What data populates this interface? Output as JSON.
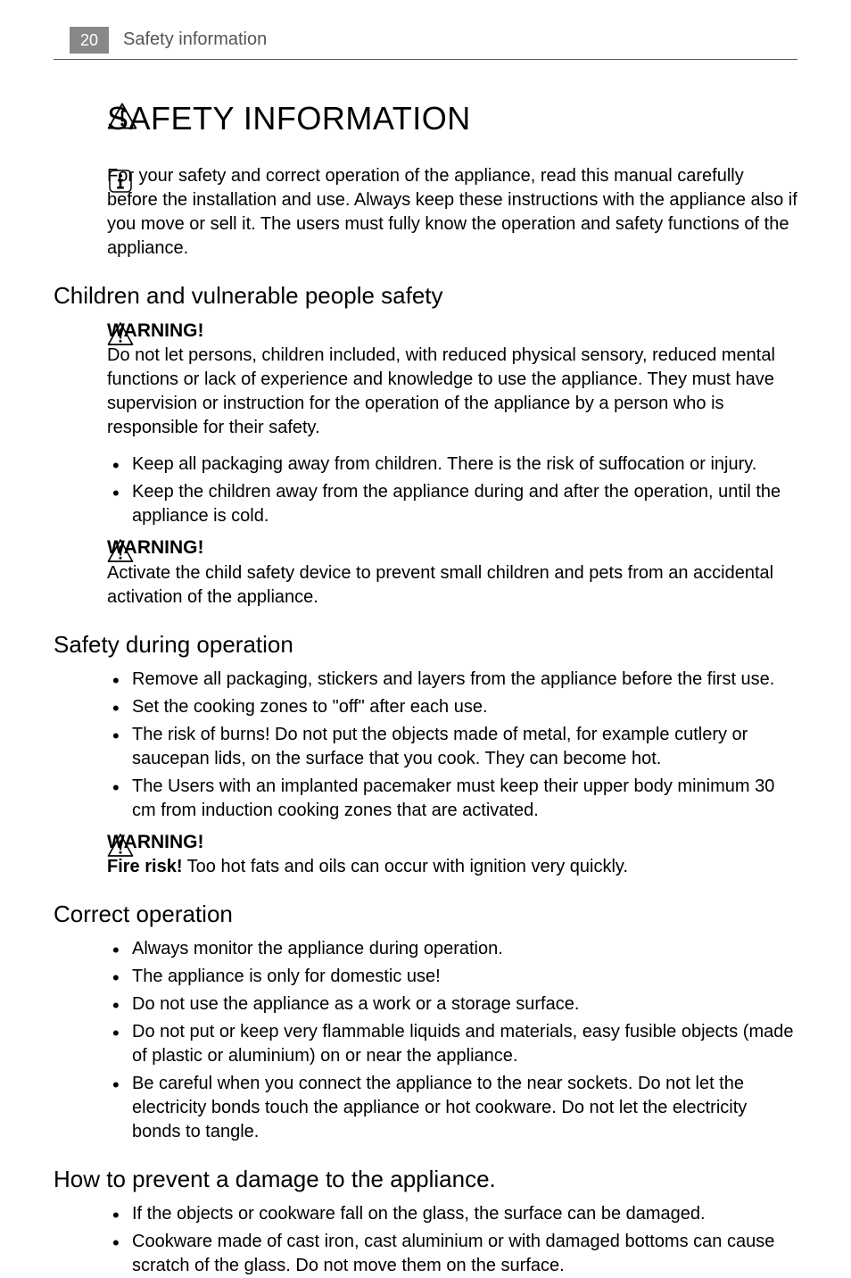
{
  "header": {
    "page_number": "20",
    "running_title": "Safety information"
  },
  "title": "SAFETY INFORMATION",
  "intro": "For your safety and correct operation of the appliance, read this manual carefully before the installation and use. Always keep these instructions with the appliance also if you move or sell it. The users must fully know the operation and safety functions of the appliance.",
  "sections": {
    "children": {
      "heading": "Children and vulnerable people safety",
      "warning1_label": "WARNING!",
      "warning1_body": "Do not let persons, children included, with reduced physical sensory, reduced mental functions or lack of experience and knowledge to use the appliance. They must have supervision or instruction for the operation of the appliance by a person who is responsible for their safety.",
      "bullets": [
        "Keep all packaging away from children. There is the risk of suffocation or injury.",
        "Keep the children away from the appliance during and after the operation, until the appliance is cold."
      ],
      "warning2_label": "WARNING!",
      "warning2_body": "Activate the child safety device to prevent small children and pets from an accidental activation of the appliance."
    },
    "during": {
      "heading": "Safety during operation",
      "bullets": [
        "Remove all packaging, stickers and layers from the appliance before the first use.",
        "Set the cooking zones to \"off\" after each use.",
        "The risk of burns! Do not put the objects made of metal, for example cutlery or saucepan lids, on the surface that you cook. They can become hot.",
        "The Users with an implanted pacemaker must keep their upper body minimum 30 cm from induction cooking zones that are activated."
      ],
      "warning_label": "WARNING!",
      "warning_bold": "Fire risk!",
      "warning_body": " Too hot fats and oils can occur with ignition very quickly."
    },
    "correct": {
      "heading": "Correct operation",
      "bullets": [
        "Always monitor the appliance during operation.",
        "The appliance is only for domestic use!",
        "Do not use the appliance as a work or a storage surface.",
        "Do not put or keep very flammable liquids and materials, easy fusible objects (made of plastic or aluminium) on or near the appliance.",
        "Be careful when you connect the appliance to the near sockets. Do not let the electricity bonds touch the appliance or hot cookware. Do not let the electricity bonds to tangle."
      ]
    },
    "prevent": {
      "heading": "How to prevent a damage to the appliance.",
      "bullets": [
        "If the objects or cookware fall on the glass, the surface can be damaged.",
        "Cookware made of cast iron, cast aluminium or with damaged bottoms can cause scratch of the glass. Do not move them on the surface."
      ]
    }
  },
  "style": {
    "body_font_size": 20,
    "h1_font_size": 36,
    "h2_font_size": 26,
    "text_color": "#000000",
    "header_gray": "#888888",
    "background": "#ffffff",
    "rule_color": "#555555"
  }
}
